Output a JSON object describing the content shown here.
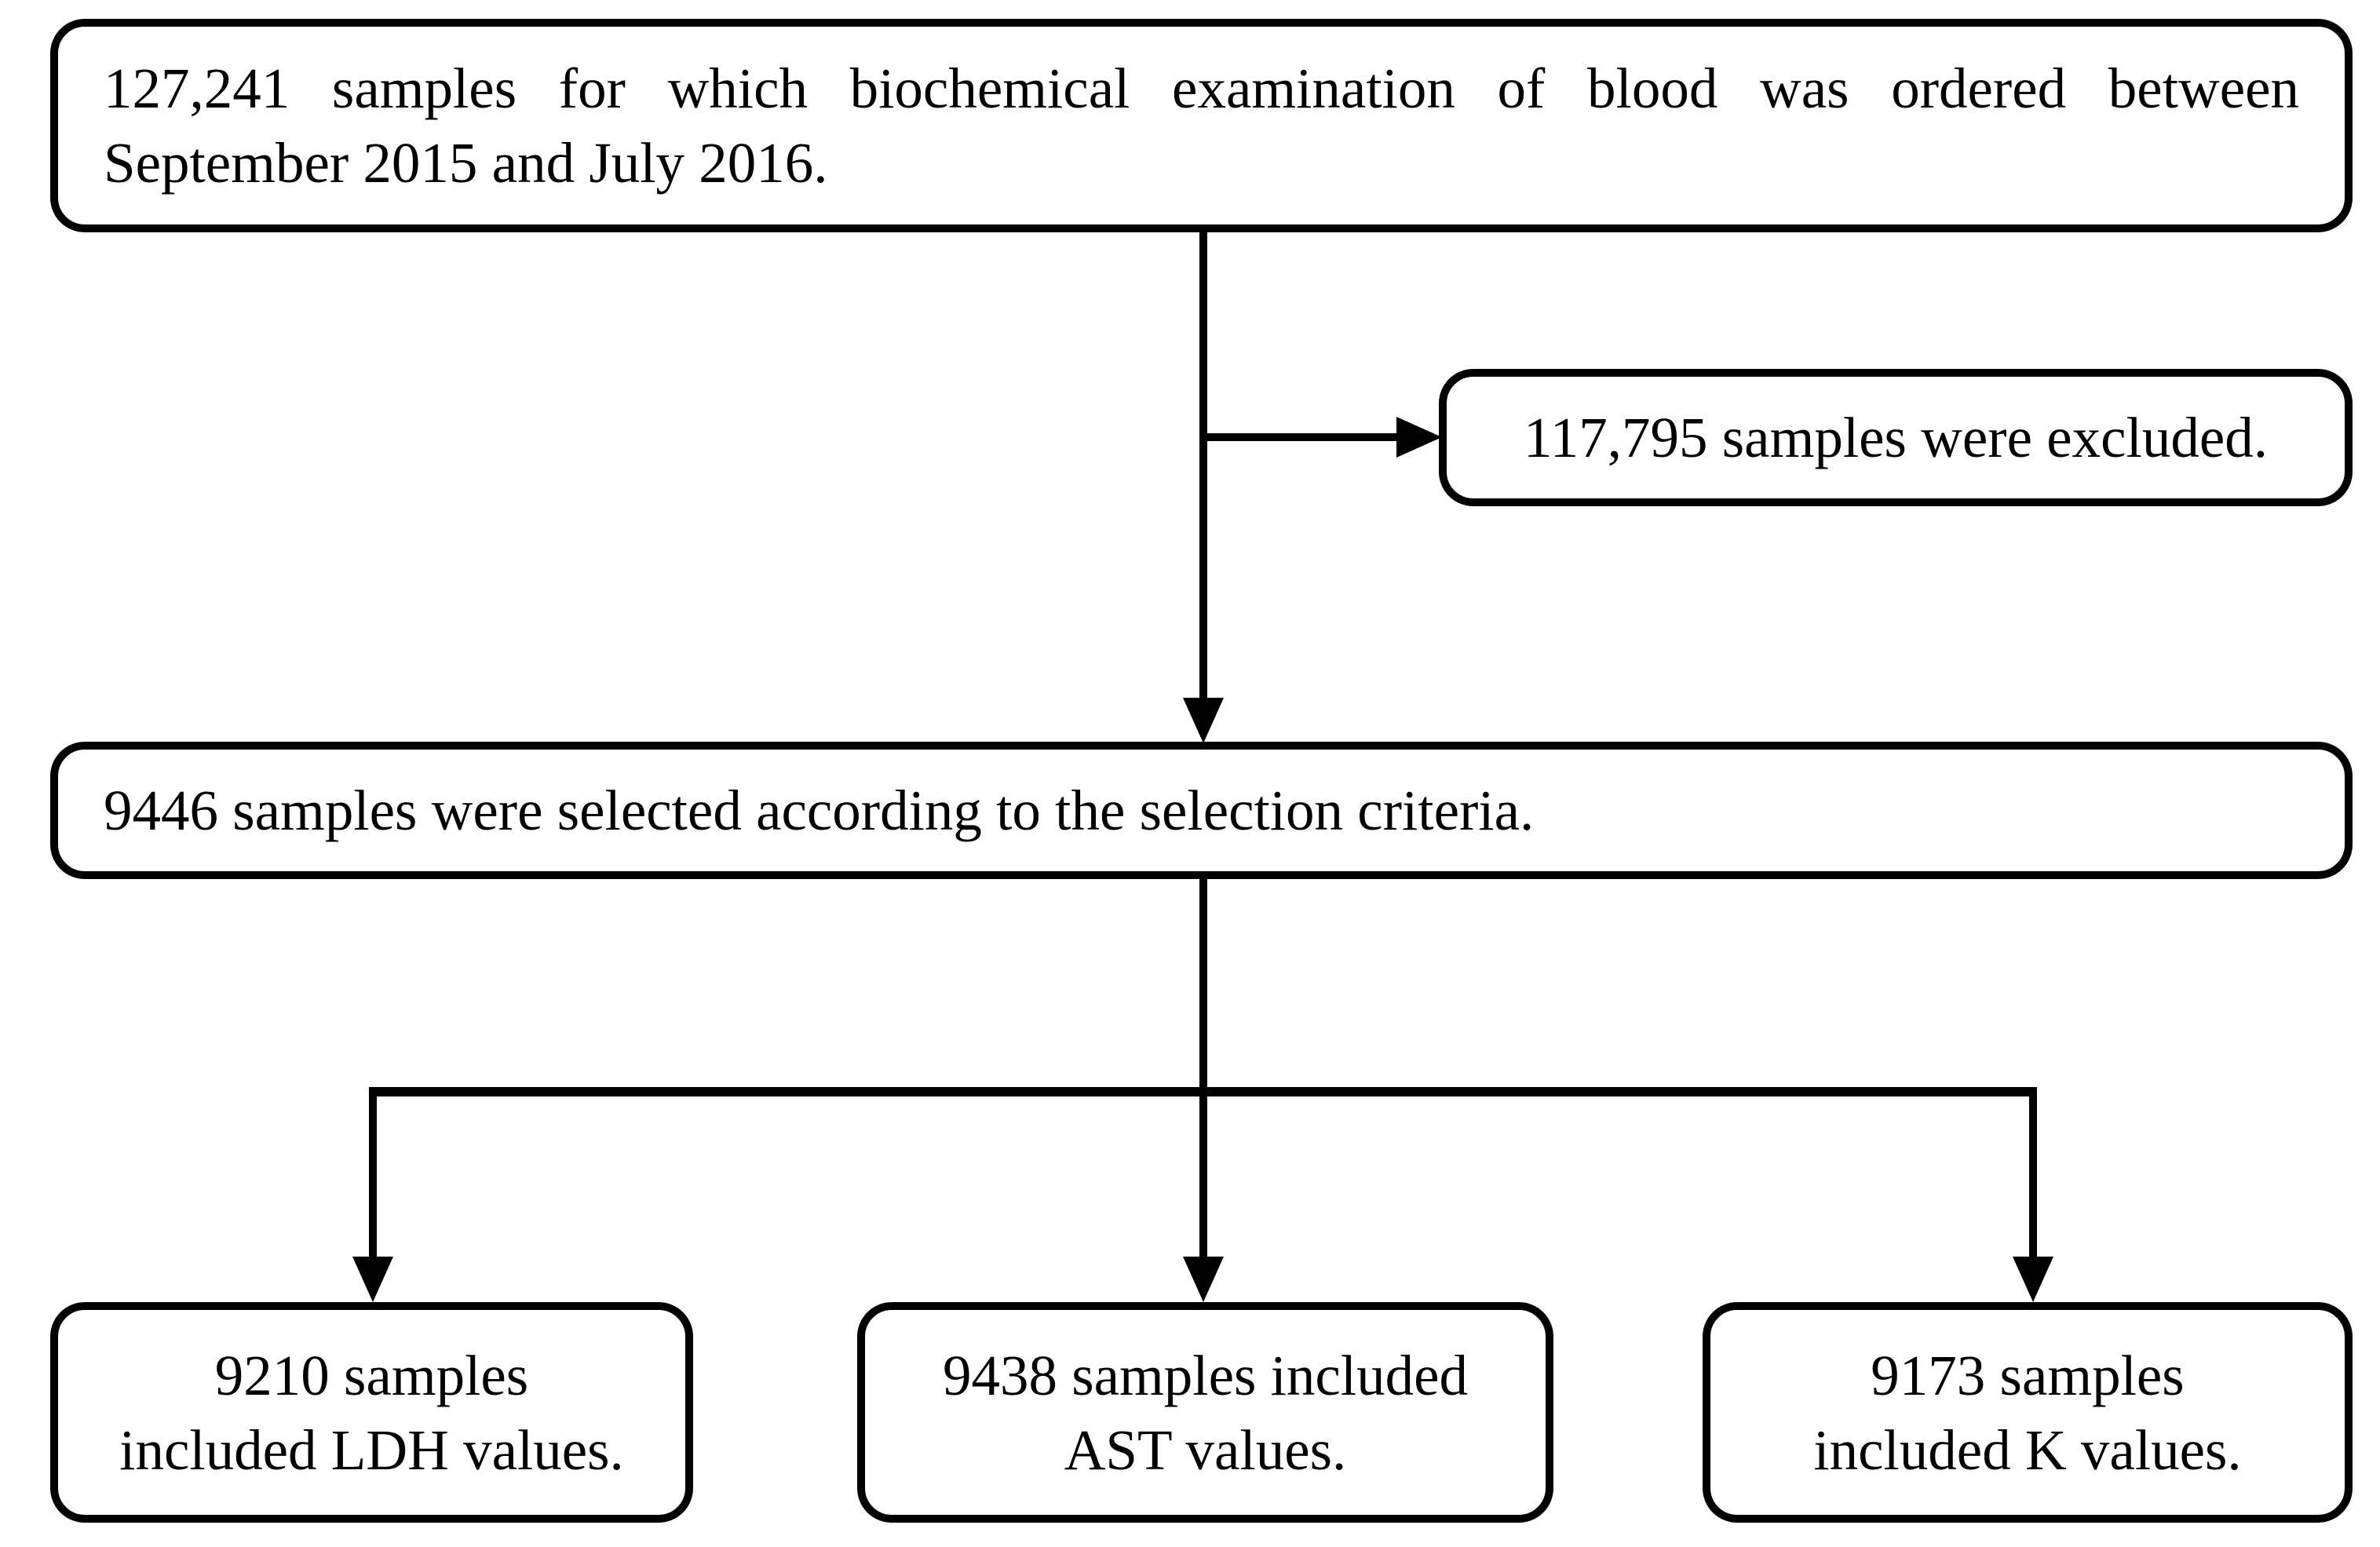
{
  "diagram": {
    "type": "flowchart",
    "colors": {
      "ink": "#000000",
      "background": "#ffffff"
    },
    "nodes": {
      "source": {
        "lines": [
          "127,241 samples for which biochemical examination of blood was ordered between",
          "September 2015 and July 2016."
        ]
      },
      "excluded": {
        "text": "117,795 samples were excluded."
      },
      "selected": {
        "text": "9446 samples were selected according to the selection criteria."
      },
      "ldh": {
        "lines": [
          "9210 samples",
          "included LDH values."
        ]
      },
      "ast": {
        "lines": [
          "9438 samples included",
          "AST values."
        ]
      },
      "k": {
        "lines": [
          "9173 samples",
          "included K values."
        ]
      }
    },
    "edges": [
      {
        "from": "source",
        "to": "selected"
      },
      {
        "from": "source",
        "to": "excluded"
      },
      {
        "from": "selected",
        "to": "ldh"
      },
      {
        "from": "selected",
        "to": "ast"
      },
      {
        "from": "selected",
        "to": "k"
      }
    ]
  }
}
